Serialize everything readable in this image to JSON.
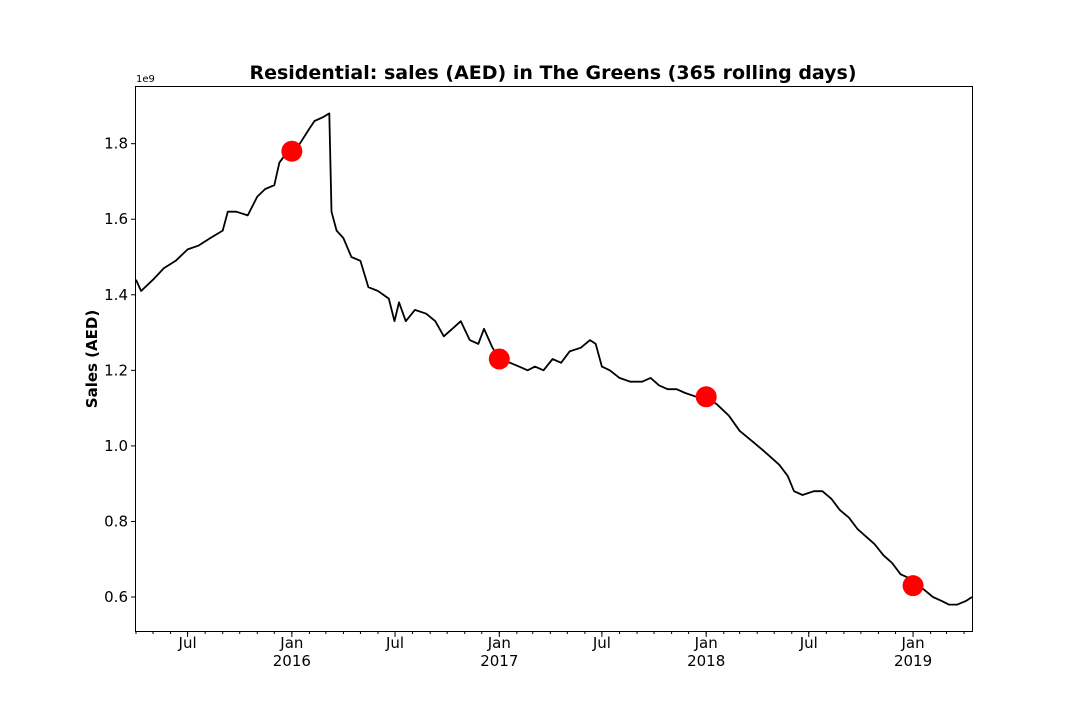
{
  "chart_data": {
    "type": "line",
    "title": "Residential: sales (AED) in The Greens (365 rolling days)",
    "ylabel": "Sales (AED)",
    "xlabel": "",
    "y_multiplier_label": "1e9",
    "y_unit_multiplier": 1000000000,
    "xlim": [
      "2015-04-01",
      "2019-04-15"
    ],
    "ylim": [
      0.51,
      1.95
    ],
    "y_ticks": [
      0.6,
      0.8,
      1.0,
      1.2,
      1.4,
      1.6,
      1.8
    ],
    "x_major_ticks": [
      {
        "date": "2015-07-01",
        "label": "Jul",
        "sublabel": ""
      },
      {
        "date": "2016-01-01",
        "label": "Jan",
        "sublabel": "2016"
      },
      {
        "date": "2016-07-01",
        "label": "Jul",
        "sublabel": ""
      },
      {
        "date": "2017-01-01",
        "label": "Jan",
        "sublabel": "2017"
      },
      {
        "date": "2017-07-01",
        "label": "Jul",
        "sublabel": ""
      },
      {
        "date": "2018-01-01",
        "label": "Jan",
        "sublabel": "2018"
      },
      {
        "date": "2018-07-01",
        "label": "Jul",
        "sublabel": ""
      },
      {
        "date": "2019-01-01",
        "label": "Jan",
        "sublabel": "2019"
      }
    ],
    "grid": false,
    "series": [
      {
        "color": "#000000",
        "points": [
          [
            "2015-04-01",
            1.44
          ],
          [
            "2015-04-10",
            1.41
          ],
          [
            "2015-05-01",
            1.44
          ],
          [
            "2015-05-20",
            1.47
          ],
          [
            "2015-06-10",
            1.49
          ],
          [
            "2015-07-01",
            1.52
          ],
          [
            "2015-07-20",
            1.53
          ],
          [
            "2015-08-10",
            1.55
          ],
          [
            "2015-09-01",
            1.57
          ],
          [
            "2015-09-10",
            1.62
          ],
          [
            "2015-09-25",
            1.62
          ],
          [
            "2015-10-15",
            1.61
          ],
          [
            "2015-11-01",
            1.66
          ],
          [
            "2015-11-15",
            1.68
          ],
          [
            "2015-12-01",
            1.69
          ],
          [
            "2015-12-10",
            1.75
          ],
          [
            "2015-12-25",
            1.78
          ],
          [
            "2016-01-15",
            1.8
          ],
          [
            "2016-02-01",
            1.84
          ],
          [
            "2016-02-10",
            1.86
          ],
          [
            "2016-02-25",
            1.87
          ],
          [
            "2016-03-07",
            1.88
          ],
          [
            "2016-03-11",
            1.62
          ],
          [
            "2016-03-20",
            1.57
          ],
          [
            "2016-04-01",
            1.55
          ],
          [
            "2016-04-15",
            1.5
          ],
          [
            "2016-05-01",
            1.49
          ],
          [
            "2016-05-15",
            1.42
          ],
          [
            "2016-06-01",
            1.41
          ],
          [
            "2016-06-20",
            1.39
          ],
          [
            "2016-06-30",
            1.33
          ],
          [
            "2016-07-08",
            1.38
          ],
          [
            "2016-07-20",
            1.33
          ],
          [
            "2016-08-05",
            1.36
          ],
          [
            "2016-08-25",
            1.35
          ],
          [
            "2016-09-10",
            1.33
          ],
          [
            "2016-09-25",
            1.29
          ],
          [
            "2016-10-10",
            1.31
          ],
          [
            "2016-10-25",
            1.33
          ],
          [
            "2016-11-10",
            1.28
          ],
          [
            "2016-11-25",
            1.27
          ],
          [
            "2016-12-05",
            1.31
          ],
          [
            "2016-12-20",
            1.26
          ],
          [
            "2017-01-01",
            1.23
          ],
          [
            "2017-01-20",
            1.22
          ],
          [
            "2017-02-05",
            1.21
          ],
          [
            "2017-02-20",
            1.2
          ],
          [
            "2017-03-05",
            1.21
          ],
          [
            "2017-03-20",
            1.2
          ],
          [
            "2017-04-05",
            1.23
          ],
          [
            "2017-04-20",
            1.22
          ],
          [
            "2017-05-05",
            1.25
          ],
          [
            "2017-05-25",
            1.26
          ],
          [
            "2017-06-10",
            1.28
          ],
          [
            "2017-06-20",
            1.27
          ],
          [
            "2017-07-01",
            1.21
          ],
          [
            "2017-07-15",
            1.2
          ],
          [
            "2017-08-01",
            1.18
          ],
          [
            "2017-08-20",
            1.17
          ],
          [
            "2017-09-10",
            1.17
          ],
          [
            "2017-09-25",
            1.18
          ],
          [
            "2017-10-10",
            1.16
          ],
          [
            "2017-10-25",
            1.15
          ],
          [
            "2017-11-10",
            1.15
          ],
          [
            "2017-11-25",
            1.14
          ],
          [
            "2017-12-15",
            1.13
          ],
          [
            "2018-01-01",
            1.13
          ],
          [
            "2018-01-20",
            1.11
          ],
          [
            "2018-02-10",
            1.08
          ],
          [
            "2018-03-01",
            1.04
          ],
          [
            "2018-03-25",
            1.01
          ],
          [
            "2018-04-10",
            0.99
          ],
          [
            "2018-04-25",
            0.97
          ],
          [
            "2018-05-10",
            0.95
          ],
          [
            "2018-05-25",
            0.92
          ],
          [
            "2018-06-05",
            0.88
          ],
          [
            "2018-06-20",
            0.87
          ],
          [
            "2018-07-10",
            0.88
          ],
          [
            "2018-07-25",
            0.88
          ],
          [
            "2018-08-10",
            0.86
          ],
          [
            "2018-08-25",
            0.83
          ],
          [
            "2018-09-10",
            0.81
          ],
          [
            "2018-09-25",
            0.78
          ],
          [
            "2018-10-10",
            0.76
          ],
          [
            "2018-10-25",
            0.74
          ],
          [
            "2018-11-10",
            0.71
          ],
          [
            "2018-11-25",
            0.69
          ],
          [
            "2018-12-10",
            0.66
          ],
          [
            "2018-12-25",
            0.65
          ],
          [
            "2019-01-01",
            0.63
          ],
          [
            "2019-01-20",
            0.62
          ],
          [
            "2019-02-05",
            0.6
          ],
          [
            "2019-02-20",
            0.59
          ],
          [
            "2019-03-05",
            0.58
          ],
          [
            "2019-03-20",
            0.58
          ],
          [
            "2019-04-05",
            0.59
          ],
          [
            "2019-04-15",
            0.6
          ]
        ]
      },
      {
        "type": "scatter",
        "color": "#ff0000",
        "points": [
          [
            "2016-01-01",
            1.78
          ],
          [
            "2017-01-01",
            1.23
          ],
          [
            "2018-01-01",
            1.13
          ],
          [
            "2019-01-01",
            0.63
          ]
        ]
      }
    ]
  }
}
